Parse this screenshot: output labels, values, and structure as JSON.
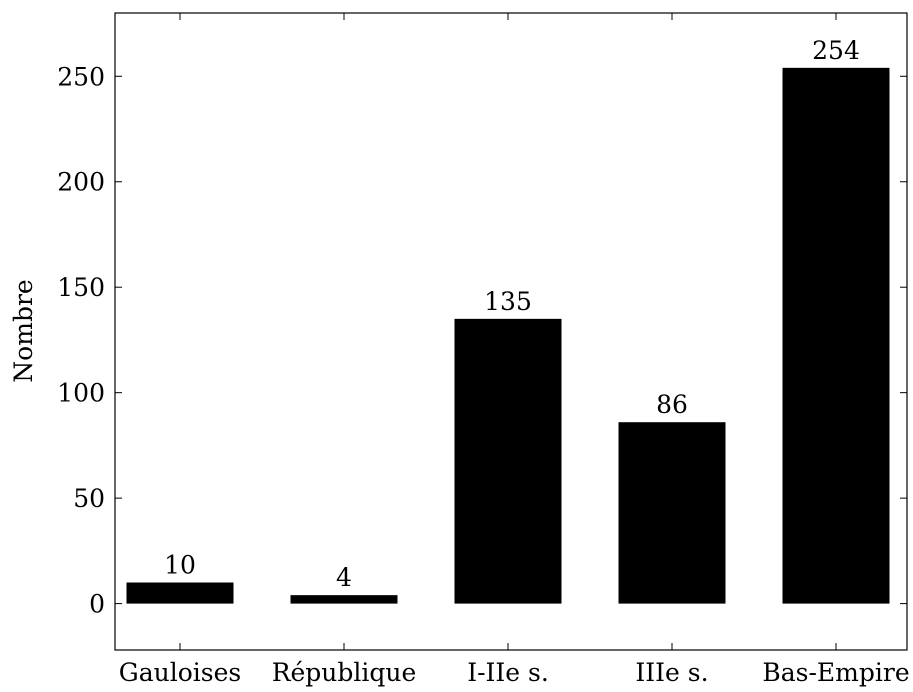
{
  "chart_data": {
    "type": "bar",
    "title": "",
    "xlabel": "",
    "ylabel": "Nombre",
    "categories": [
      "Gauloises",
      "République",
      "I-IIe s.",
      "IIIe s.",
      "Bas-Empire"
    ],
    "values": [
      10,
      4,
      135,
      86,
      254
    ],
    "data_labels": [
      "10",
      "4",
      "135",
      "86",
      "254"
    ],
    "ylim": [
      -22,
      280
    ],
    "yticks": [
      0,
      50,
      100,
      150,
      200,
      250
    ],
    "grid": false,
    "legend": "none",
    "bar_color": "#000000",
    "axis_color": "#000000"
  }
}
